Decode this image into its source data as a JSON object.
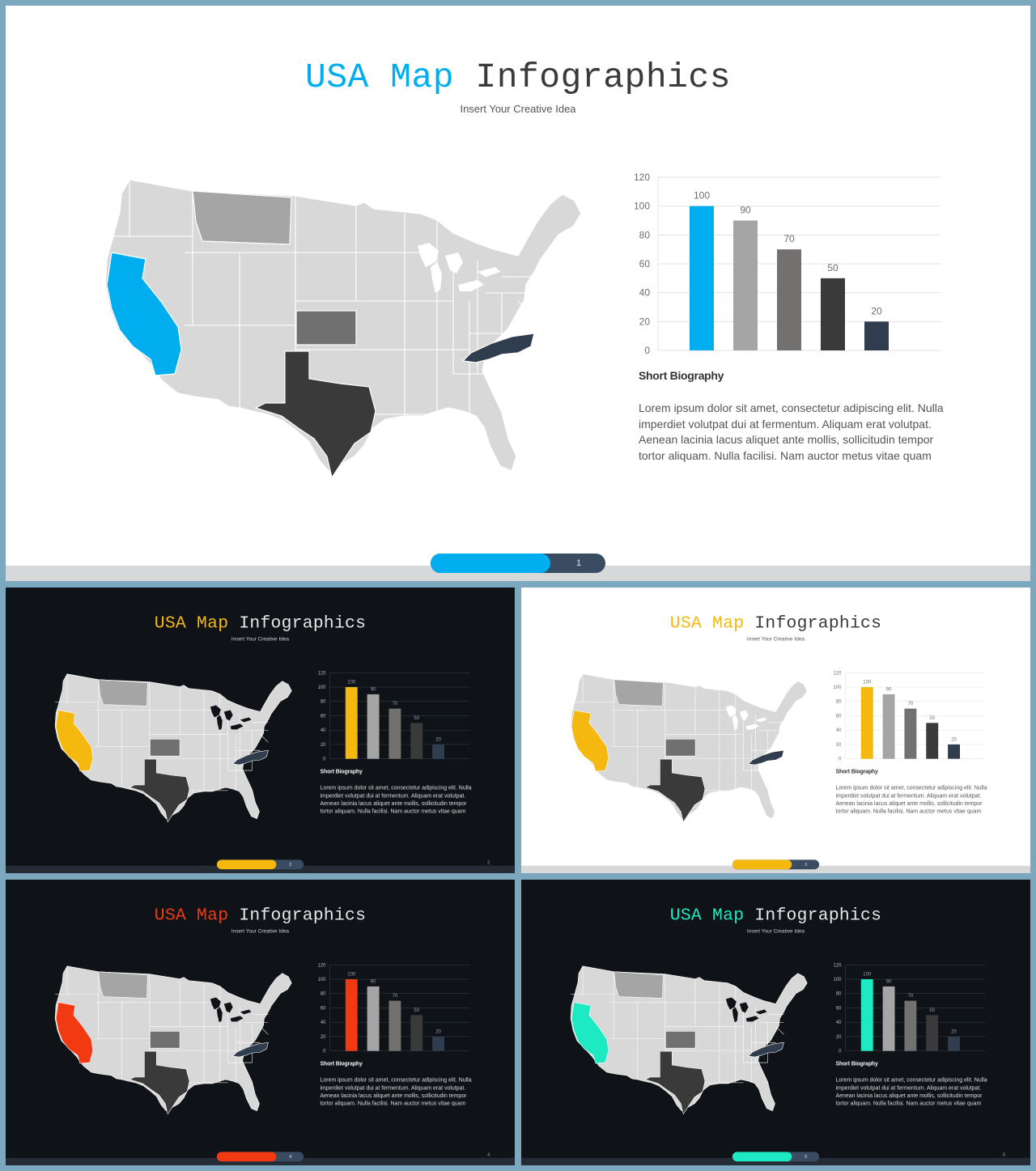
{
  "slides": [
    {
      "theme": "light",
      "accent": "#00aeef",
      "title_accent": "USA Map",
      "title_rest": "Infographics",
      "subtitle": "Insert Your Creative Idea",
      "bio_title": "Short Biography",
      "bio_text": "Lorem ipsum dolor sit amet, consectetur adipiscing elit. Nulla imperdiet volutpat dui at fermentum. Aliquam erat volutpat. Aenean lacinia lacus aliquet ante mollis, sollicitudin tempor tortor aliquam. Nulla facilisi. Nam auctor metus vitae quam",
      "page_number": "1",
      "corner_number": ""
    },
    {
      "theme": "dark",
      "accent": "#f5b80f",
      "title_accent": "USA Map",
      "title_rest": "Infographics",
      "subtitle": "Insert Your Creative Idea",
      "bio_title": "Short Biography",
      "bio_text": "Lorem ipsum dolor sit amet, consectetur adipiscing elit. Nulla imperdiet volutpat dui at fermentum. Aliquam erat volutpat. Aenean lacinia lacus aliquet ante mollis, sollicitudin tempor tortor aliquam. Nulla facilisi. Nam auctor metus vitae quam",
      "page_number": "2",
      "corner_number": "2"
    },
    {
      "theme": "light",
      "accent": "#f5b80f",
      "title_accent": "USA Map",
      "title_rest": "Infographics",
      "subtitle": "Insert Your Creative Idea",
      "bio_title": "Short Biography",
      "bio_text": "Lorem ipsum dolor sit amet, consectetur adipiscing elit. Nulla imperdiet volutpat dui at fermentum. Aliquam erat volutpat. Aenean lacinia lacus aliquet ante mollis, sollicitudin tempor tortor aliquam. Nulla facilisi. Nam auctor metus vitae quam",
      "page_number": "3",
      "corner_number": ""
    },
    {
      "theme": "dark",
      "accent": "#f23a12",
      "title_accent": "USA Map",
      "title_rest": "Infographics",
      "subtitle": "Insert Your Creative Idea",
      "bio_title": "Short Biography",
      "bio_text": "Lorem ipsum dolor sit amet, consectetur adipiscing elit. Nulla imperdiet volutpat dui at fermentum. Aliquam erat volutpat. Aenean lacinia lacus aliquet ante mollis, sollicitudin tempor tortor aliquam. Nulla facilisi. Nam auctor metus vitae quam",
      "page_number": "4",
      "corner_number": "4"
    },
    {
      "theme": "dark",
      "accent": "#1de9c3",
      "title_accent": "USA Map",
      "title_rest": "Infographics",
      "subtitle": "Insert Your Creative Idea",
      "bio_title": "Short Biography",
      "bio_text": "Lorem ipsum dolor sit amet, consectetur adipiscing elit. Nulla imperdiet volutpat dui at fermentum. Aliquam erat volutpat. Aenean lacinia lacus aliquet ante mollis, sollicitudin tempor tortor aliquam. Nulla facilisi. Nam auctor metus vitae quam",
      "page_number": "5",
      "corner_number": "5"
    }
  ],
  "map": {
    "highlight_colors": {
      "california": "accent",
      "montana": "#a5a5a5",
      "kansas": "#707070",
      "texas": "#3a3a3a",
      "north_carolina": "#2f3d4f"
    },
    "base_color": "#d8d8d8"
  },
  "chart_data": {
    "type": "bar",
    "categories": [
      "",
      "",
      "",
      "",
      ""
    ],
    "values": [
      100,
      90,
      70,
      50,
      20
    ],
    "data_labels": [
      "100",
      "90",
      "70",
      "50",
      "20"
    ],
    "yticks": [
      "0",
      "20",
      "40",
      "60",
      "80",
      "100",
      "120"
    ],
    "ylim": [
      0,
      120
    ],
    "grid": true,
    "bar_colors": [
      "accent",
      "#a5a5a5",
      "#737070",
      "#3a3a3a",
      "#2f3d4f"
    ]
  }
}
